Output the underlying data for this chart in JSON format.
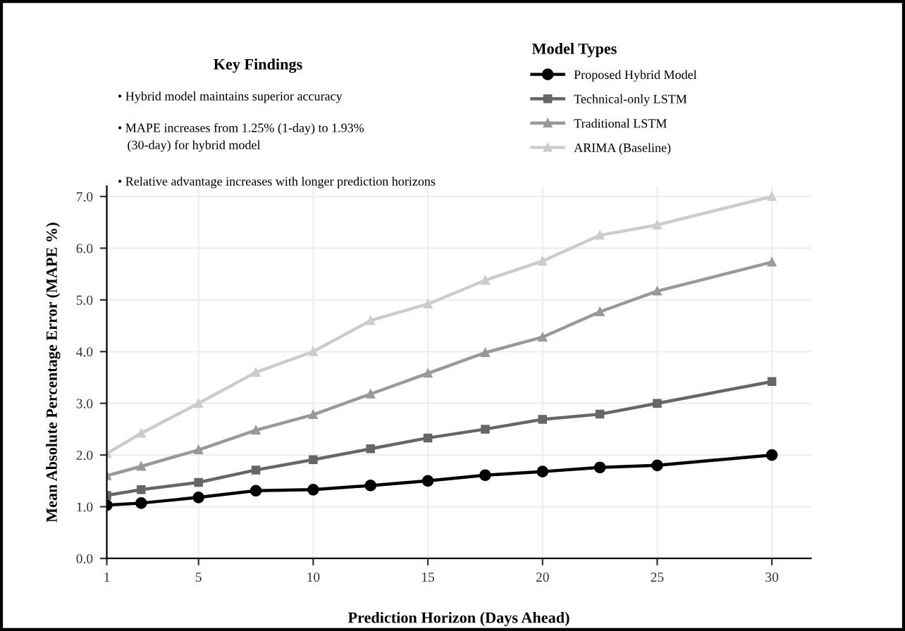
{
  "chart_data": {
    "type": "line",
    "xlabel": "Prediction Horizon (Days Ahead)",
    "ylabel": "Mean Absolute Percentage Error (MAPE %)",
    "legend_title": "Model Types",
    "legend": "top right",
    "x": [
      1,
      2.5,
      5,
      7.5,
      10,
      12.5,
      15,
      17.5,
      20,
      22.5,
      25,
      30
    ],
    "series": [
      {
        "name": "Proposed Hybrid Model",
        "color": "#000000",
        "marker": "circle",
        "values": [
          1.03,
          1.07,
          1.18,
          1.31,
          1.33,
          1.41,
          1.5,
          1.61,
          1.68,
          1.76,
          1.8,
          2.0
        ]
      },
      {
        "name": "Technical-only LSTM",
        "color": "#666666",
        "marker": "square",
        "values": [
          1.22,
          1.33,
          1.47,
          1.71,
          1.91,
          2.12,
          2.33,
          2.5,
          2.69,
          2.79,
          3.0,
          3.42
        ]
      },
      {
        "name": "Traditional LSTM",
        "color": "#999999",
        "marker": "triangle",
        "values": [
          1.6,
          1.78,
          2.1,
          2.48,
          2.78,
          3.18,
          3.58,
          3.98,
          4.28,
          4.77,
          5.17,
          5.73
        ]
      },
      {
        "name": "ARIMA (Baseline)",
        "color": "#cccccc",
        "marker": "triangle",
        "values": [
          2.03,
          2.42,
          3.0,
          3.6,
          4.0,
          4.6,
          4.92,
          5.38,
          5.75,
          6.25,
          6.45,
          7.0
        ]
      }
    ],
    "xlim": [
      1,
      31.7
    ],
    "xticks": [
      1,
      5,
      10,
      15,
      20,
      25,
      30
    ],
    "ylim": [
      0,
      7.2
    ],
    "yticks": [
      {
        "value": 0,
        "label": "0.0"
      },
      {
        "value": 1,
        "label": "1.0"
      },
      {
        "value": 2,
        "label": "2.0"
      },
      {
        "value": 3,
        "label": "3.0"
      },
      {
        "value": 4,
        "label": "4.0"
      },
      {
        "value": 5,
        "label": "5.0"
      },
      {
        "value": 6,
        "label": "6.0"
      },
      {
        "value": 7,
        "label": "7.0"
      }
    ],
    "grid": true,
    "annotations": [
      "Key Findings",
      "• Hybrid model maintains superior accuracy",
      "• MAPE increases from 1.25% (1-day) to 1.93%\n   (30-day) for hybrid model",
      "• Relative advantage increases with longer prediction horizons"
    ]
  }
}
